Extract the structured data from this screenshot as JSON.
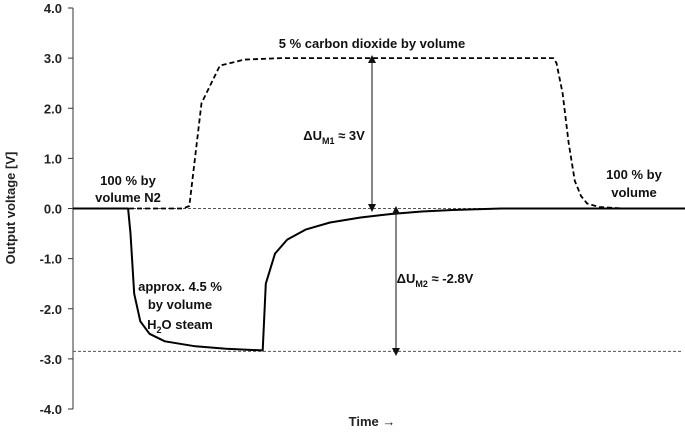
{
  "chart_data": {
    "type": "line",
    "xlabel": "Time →",
    "ylabel": "Output voltage [V]",
    "ylim": [
      -4.0,
      4.0
    ],
    "yticks": [
      "4.0",
      "3.0",
      "2.0",
      "1.0",
      "0.0",
      "-1.0",
      "-2.0",
      "-3.0",
      "-4.0"
    ],
    "xlim": [
      0,
      100
    ],
    "grid": false,
    "series": [
      {
        "style": "dashed",
        "x": [
          0,
          18,
          19,
          19.5,
          21,
          24,
          28,
          34,
          40,
          50,
          60,
          70,
          78.5,
          79,
          80,
          81,
          82,
          83,
          84,
          86,
          90,
          100
        ],
        "y": [
          0.0,
          0.0,
          0.05,
          0.55,
          2.1,
          2.85,
          2.97,
          3.0,
          3.0,
          3.0,
          3.0,
          3.0,
          3.0,
          2.9,
          2.3,
          1.3,
          0.55,
          0.25,
          0.1,
          0.03,
          0.0,
          0.0
        ]
      },
      {
        "style": "solid",
        "x": [
          0,
          9,
          9.4,
          10,
          11,
          12.5,
          15,
          20,
          25,
          31,
          31.5,
          33,
          35,
          38,
          42,
          47,
          52,
          57,
          62,
          70,
          80,
          100
        ],
        "y": [
          0.0,
          0.0,
          -0.5,
          -1.7,
          -2.25,
          -2.5,
          -2.65,
          -2.75,
          -2.8,
          -2.83,
          -1.5,
          -0.9,
          -0.62,
          -0.42,
          -0.28,
          -0.18,
          -0.11,
          -0.06,
          -0.03,
          0.0,
          0.0,
          0.0
        ]
      }
    ],
    "reference_lines": [
      {
        "y": 0.0,
        "style": "dotted"
      },
      {
        "y": -2.85,
        "style": "dotted"
      }
    ],
    "annotations": {
      "co2_label": "5 % carbon dioxide by volume",
      "n2_left_line1": "100 % by",
      "n2_left_line2": "volume N2",
      "right_line1": "100 % by",
      "right_line2": "volume",
      "h2o_line1": "approx. 4.5 %",
      "h2o_line2": "by volume",
      "h2o_line3_main": "H",
      "h2o_line3_sub": "2",
      "h2o_line3_rest": "O steam",
      "du1_main": "ΔU",
      "du1_sub": "M1",
      "du1_rest": " ≈ 3V",
      "du2_main": "ΔU",
      "du2_sub": "M2",
      "du2_rest": " ≈ -2.8V"
    }
  }
}
